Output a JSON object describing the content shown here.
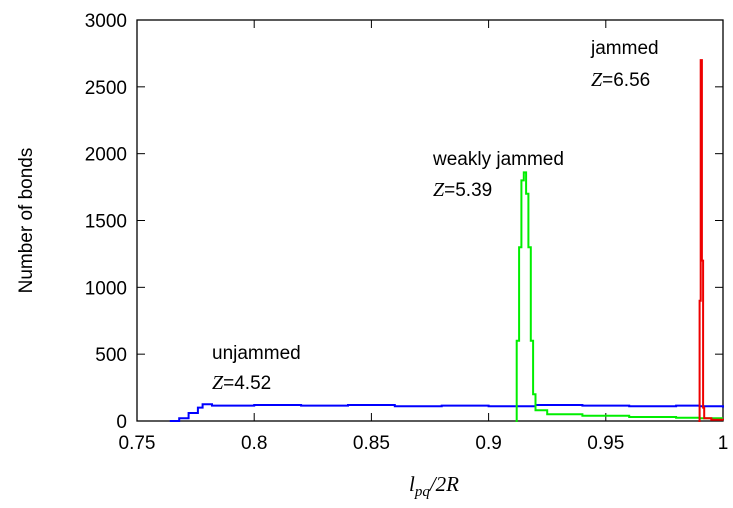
{
  "chart_data": {
    "type": "line",
    "title": "",
    "xlabel": {
      "main": "l",
      "sub": "pq",
      "rest": "/2R"
    },
    "ylabel": "Number of bonds",
    "xlim": [
      0.75,
      1.0
    ],
    "ylim": [
      0,
      3000
    ],
    "x_ticks": [
      "0.75",
      "0.8",
      "0.85",
      "0.9",
      "0.95",
      "1"
    ],
    "y_ticks": [
      "0",
      "500",
      "1000",
      "1500",
      "2000",
      "2500",
      "3000"
    ],
    "grid": false,
    "legend": "none",
    "series": [
      {
        "color": "#0000ff",
        "x": [
          0.764,
          0.768,
          0.772,
          0.776,
          0.778,
          0.782,
          0.8,
          0.82,
          0.84,
          0.86,
          0.88,
          0.9,
          0.92,
          0.94,
          0.96,
          0.98,
          0.99,
          0.995,
          1.0
        ],
        "y": [
          0,
          20,
          60,
          100,
          125,
          115,
          120,
          115,
          120,
          110,
          115,
          110,
          120,
          115,
          110,
          115,
          110,
          110,
          100
        ]
      },
      {
        "color": "#00ee00",
        "x": [
          0.9115,
          0.912,
          0.913,
          0.914,
          0.915,
          0.916,
          0.917,
          0.918,
          0.919,
          0.92,
          0.925,
          0.94,
          0.96,
          0.98,
          0.99,
          1.0
        ],
        "y": [
          0,
          600,
          1300,
          1800,
          1860,
          1700,
          1300,
          600,
          200,
          80,
          50,
          40,
          30,
          25,
          20,
          20
        ]
      },
      {
        "color": "#ee0000",
        "x": [
          0.9895,
          0.99,
          0.9905,
          0.991,
          0.9915,
          0.992,
          0.995,
          1.0
        ],
        "y": [
          0,
          900,
          2700,
          1200,
          100,
          20,
          10,
          5
        ]
      }
    ],
    "annotations": [
      {
        "line1": "unjammed",
        "var": "Z",
        "value": "=4.52"
      },
      {
        "line1": "weakly jammed",
        "var": "Z",
        "value": "=5.39"
      },
      {
        "line1": "jammed",
        "var": "Z",
        "value": "=6.56"
      }
    ]
  }
}
